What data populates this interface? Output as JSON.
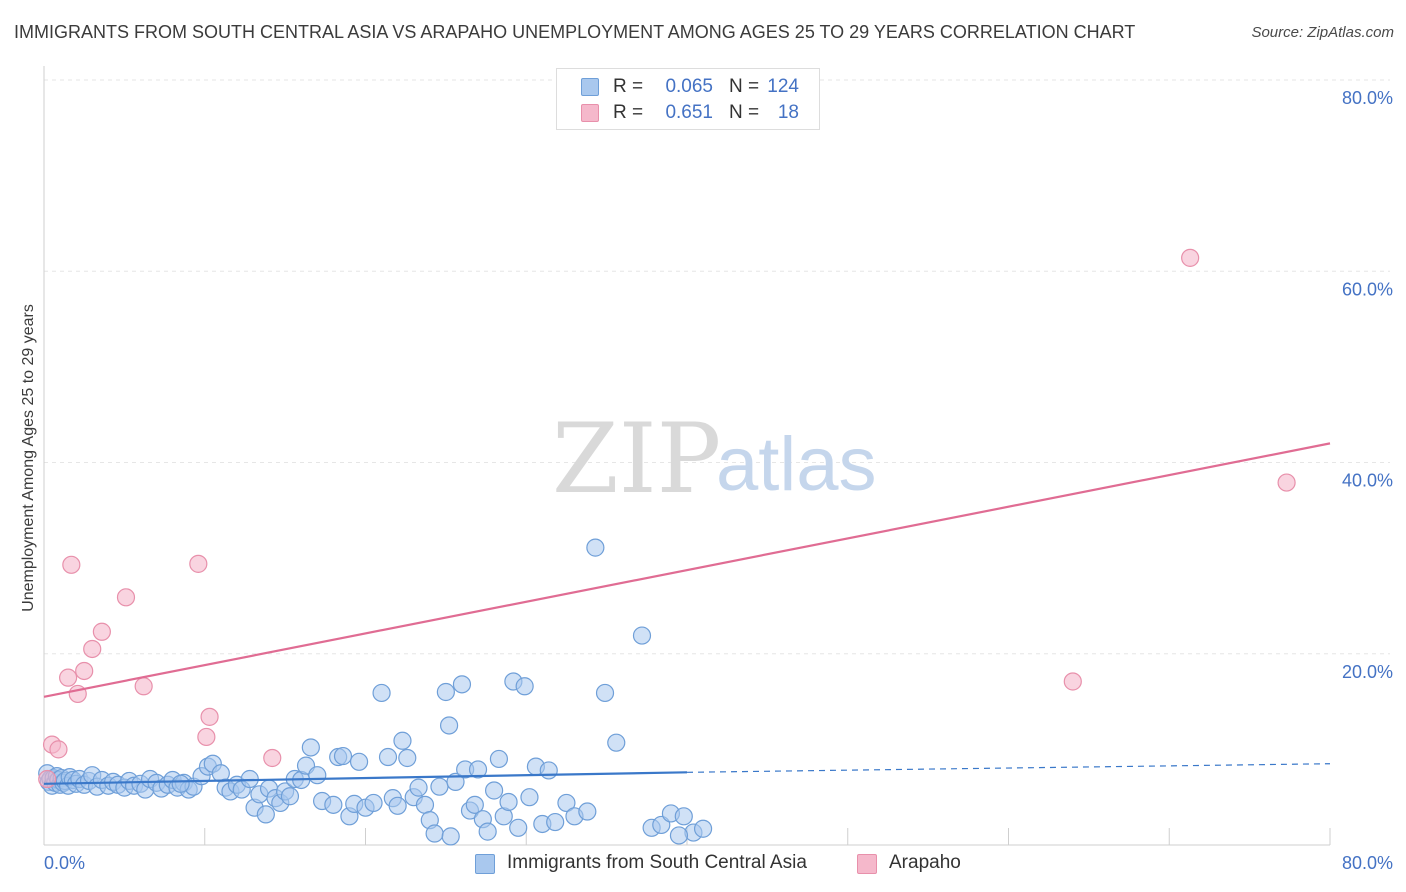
{
  "header": {
    "title": "IMMIGRANTS FROM SOUTH CENTRAL ASIA VS ARAPAHO UNEMPLOYMENT AMONG AGES 25 TO 29 YEARS CORRELATION CHART",
    "source": "Source: ZipAtlas.com"
  },
  "legend": {
    "series1": {
      "r_label": "R =",
      "r_value": "0.065",
      "n_label": "N =",
      "n_value": "124"
    },
    "series2": {
      "r_label": "R =",
      "r_value": "0.651",
      "n_label": "N =",
      "n_value": "18"
    }
  },
  "bottom_legend": {
    "series1_label": "Immigrants from South Central Asia",
    "series2_label": "Arapaho"
  },
  "watermark": {
    "zip": "ZIP",
    "atlas": "atlas"
  },
  "colors": {
    "blue_fill": "#a9c8ee",
    "blue_stroke": "#6f9fd8",
    "blue_line": "#3a78c9",
    "pink_fill": "#f5b8cb",
    "pink_stroke": "#e890ab",
    "pink_line": "#e06c93",
    "tick_color": "#4472c4",
    "grid": "#e6e6e6"
  },
  "chart_data": {
    "type": "scatter",
    "title": "IMMIGRANTS FROM SOUTH CENTRAL ASIA VS ARAPAHO UNEMPLOYMENT AMONG AGES 25 TO 29 YEARS CORRELATION CHART",
    "xlabel": "",
    "ylabel": "Unemployment Among Ages 25 to 29 years",
    "xlim": [
      0,
      80
    ],
    "ylim": [
      0,
      80
    ],
    "x_tick_labels": [
      "0.0%",
      "80.0%"
    ],
    "y_ticks": [
      20,
      40,
      60,
      80
    ],
    "y_tick_labels": [
      "20.0%",
      "40.0%",
      "60.0%",
      "80.0%"
    ],
    "grid": true,
    "series": [
      {
        "name": "Immigrants from South Central Asia",
        "R": 0.065,
        "N": 124,
        "trend": {
          "x0": 0,
          "y0": 6.4,
          "x1": 40,
          "y1": 7.6,
          "dash_to_x": 80,
          "dash_to_y": 8.5
        },
        "points": [
          [
            0.2,
            7.5
          ],
          [
            0.3,
            6.6
          ],
          [
            0.4,
            6.9
          ],
          [
            0.5,
            6.2
          ],
          [
            0.6,
            7.0
          ],
          [
            0.7,
            6.5
          ],
          [
            0.8,
            7.2
          ],
          [
            0.9,
            6.8
          ],
          [
            1.0,
            6.3
          ],
          [
            1.1,
            7.0
          ],
          [
            1.2,
            6.5
          ],
          [
            1.3,
            6.7
          ],
          [
            1.5,
            6.2
          ],
          [
            1.6,
            7.1
          ],
          [
            1.8,
            6.8
          ],
          [
            2.0,
            6.4
          ],
          [
            2.2,
            6.9
          ],
          [
            2.5,
            6.3
          ],
          [
            2.8,
            6.7
          ],
          [
            3.0,
            7.3
          ],
          [
            3.3,
            6.1
          ],
          [
            3.6,
            6.8
          ],
          [
            4.0,
            6.2
          ],
          [
            4.3,
            6.6
          ],
          [
            4.6,
            6.3
          ],
          [
            5.0,
            6.0
          ],
          [
            5.3,
            6.7
          ],
          [
            5.6,
            6.2
          ],
          [
            6.0,
            6.4
          ],
          [
            6.3,
            5.8
          ],
          [
            6.6,
            6.9
          ],
          [
            7.0,
            6.5
          ],
          [
            7.3,
            5.9
          ],
          [
            7.7,
            6.3
          ],
          [
            8.0,
            6.8
          ],
          [
            8.3,
            6.0
          ],
          [
            8.7,
            6.5
          ],
          [
            9.0,
            5.8
          ],
          [
            9.3,
            6.1
          ],
          [
            9.8,
            7.2
          ],
          [
            10.2,
            8.2
          ],
          [
            10.5,
            8.5
          ],
          [
            11.0,
            7.5
          ],
          [
            11.3,
            6.0
          ],
          [
            11.6,
            5.6
          ],
          [
            12.0,
            6.3
          ],
          [
            12.3,
            5.8
          ],
          [
            12.8,
            6.9
          ],
          [
            13.1,
            3.9
          ],
          [
            13.4,
            5.3
          ],
          [
            13.8,
            3.2
          ],
          [
            14.0,
            5.9
          ],
          [
            14.4,
            4.9
          ],
          [
            14.7,
            4.4
          ],
          [
            15.0,
            5.6
          ],
          [
            15.3,
            5.1
          ],
          [
            15.6,
            6.9
          ],
          [
            16.0,
            6.8
          ],
          [
            16.3,
            8.3
          ],
          [
            16.6,
            10.2
          ],
          [
            17.0,
            7.3
          ],
          [
            17.3,
            4.6
          ],
          [
            18.0,
            4.2
          ],
          [
            18.3,
            9.2
          ],
          [
            18.6,
            9.3
          ],
          [
            19.0,
            3.0
          ],
          [
            19.3,
            4.3
          ],
          [
            19.6,
            8.7
          ],
          [
            20.0,
            3.9
          ],
          [
            20.5,
            4.4
          ],
          [
            21.0,
            15.9
          ],
          [
            21.4,
            9.2
          ],
          [
            21.7,
            4.9
          ],
          [
            22.0,
            4.1
          ],
          [
            22.3,
            10.9
          ],
          [
            22.6,
            9.1
          ],
          [
            23.0,
            5.0
          ],
          [
            23.3,
            6.0
          ],
          [
            23.7,
            4.2
          ],
          [
            24.0,
            2.6
          ],
          [
            24.3,
            1.2
          ],
          [
            24.6,
            6.1
          ],
          [
            25.0,
            16.0
          ],
          [
            25.2,
            12.5
          ],
          [
            25.3,
            0.9
          ],
          [
            25.6,
            6.6
          ],
          [
            26.0,
            16.8
          ],
          [
            26.2,
            7.9
          ],
          [
            26.5,
            3.6
          ],
          [
            26.8,
            4.2
          ],
          [
            27.0,
            7.9
          ],
          [
            27.3,
            2.7
          ],
          [
            27.6,
            1.4
          ],
          [
            28.0,
            5.7
          ],
          [
            28.3,
            9.0
          ],
          [
            28.6,
            3.0
          ],
          [
            28.9,
            4.5
          ],
          [
            29.2,
            17.1
          ],
          [
            29.5,
            1.8
          ],
          [
            29.9,
            16.6
          ],
          [
            30.2,
            5.0
          ],
          [
            30.6,
            8.2
          ],
          [
            31.0,
            2.2
          ],
          [
            31.4,
            7.8
          ],
          [
            31.8,
            2.4
          ],
          [
            32.5,
            4.4
          ],
          [
            33.0,
            3.0
          ],
          [
            33.8,
            3.5
          ],
          [
            34.3,
            31.1
          ],
          [
            34.9,
            15.9
          ],
          [
            35.6,
            10.7
          ],
          [
            37.2,
            21.9
          ],
          [
            37.8,
            1.8
          ],
          [
            38.4,
            2.1
          ],
          [
            39.0,
            3.3
          ],
          [
            39.8,
            3.0
          ],
          [
            40.4,
            1.3
          ],
          [
            41.0,
            1.7
          ],
          [
            39.5,
            1.0
          ],
          [
            8.5,
            6.4
          ]
        ]
      },
      {
        "name": "Arapaho",
        "R": 0.651,
        "N": 18,
        "trend": {
          "x0": 0,
          "y0": 15.5,
          "x1": 80,
          "y1": 42.0
        },
        "points": [
          [
            0.2,
            6.9
          ],
          [
            0.5,
            10.5
          ],
          [
            0.9,
            10.0
          ],
          [
            1.5,
            17.5
          ],
          [
            1.7,
            29.3
          ],
          [
            2.1,
            15.8
          ],
          [
            2.5,
            18.2
          ],
          [
            3.0,
            20.5
          ],
          [
            3.6,
            22.3
          ],
          [
            5.1,
            25.9
          ],
          [
            6.2,
            16.6
          ],
          [
            9.6,
            29.4
          ],
          [
            10.1,
            11.3
          ],
          [
            10.3,
            13.4
          ],
          [
            14.2,
            9.1
          ],
          [
            64.0,
            17.1
          ],
          [
            71.3,
            61.4
          ],
          [
            77.3,
            37.9
          ]
        ]
      }
    ]
  }
}
